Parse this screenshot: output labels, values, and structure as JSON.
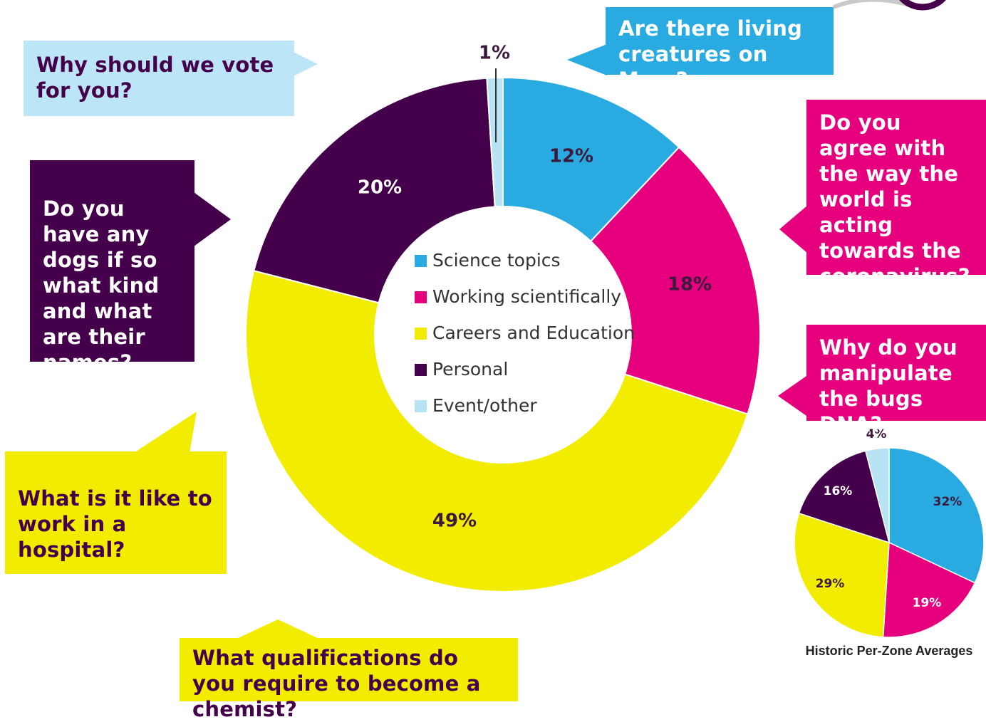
{
  "chart_data": [
    {
      "type": "pie",
      "style": "donut",
      "categories": [
        "Science topics",
        "Working scientifically",
        "Careers and Education",
        "Personal",
        "Event/other"
      ],
      "values": [
        12,
        18,
        49,
        20,
        1
      ],
      "labels": [
        "12%",
        "18%",
        "49%",
        "20%",
        "1%"
      ],
      "colors": [
        "#29abe2",
        "#e6007e",
        "#f2ec00",
        "#45004b",
        "#b7e3f5"
      ],
      "label_colors": [
        "#3d1a3c",
        "#3d1a3c",
        "#3d1a3c",
        "#ffffff",
        "#3d1a3c"
      ],
      "legend": {
        "placement": "center",
        "items": [
          "Science topics",
          "Working scientifically",
          "Careers and Education",
          "Personal",
          "Event/other"
        ]
      }
    },
    {
      "type": "pie",
      "title": "Historic Per-Zone Averages",
      "categories": [
        "Science topics",
        "Working scientifically",
        "Careers and Education",
        "Personal",
        "Event/other"
      ],
      "values": [
        32,
        19,
        29,
        16,
        4
      ],
      "labels": [
        "32%",
        "19%",
        "29%",
        "16%",
        "4%"
      ],
      "colors": [
        "#29abe2",
        "#e6007e",
        "#f2ec00",
        "#45004b",
        "#b7e3f5"
      ],
      "label_colors": [
        "#3d1a3c",
        "#ffffff",
        "#3d1a3c",
        "#ffffff",
        "#3d1a3c"
      ]
    }
  ],
  "questions": {
    "vote": "Why should we vote for you?",
    "mars": "Are there living creatures on Mars?",
    "coronavirus": "Do you agree with the way the world is acting towards the coronavirus?",
    "dogs": "Do you have any dogs if so what kind and what are their names?",
    "dna": "Why do you manipulate the bugs DNA?",
    "hospital": "What is it like to work in a hospital?",
    "chemist": "What qualifications do you require to become a chemist?"
  },
  "colors": {
    "light_blue": "#bde5f8",
    "blue": "#29abe2",
    "magenta": "#e6007e",
    "yellow": "#f2ec00",
    "purple": "#45004b",
    "text_dark": "#3d1a3c"
  }
}
